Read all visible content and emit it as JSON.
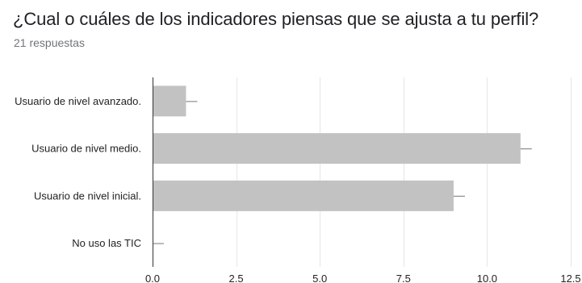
{
  "header": {
    "title": "¿Cual o cuáles de los indicadores piensas que se ajusta a tu perfil?",
    "responses": "21 respuestas"
  },
  "chart_data": {
    "type": "bar",
    "orientation": "horizontal",
    "title": "¿Cual o cuáles de los indicadores piensas que se ajusta a tu perfil?",
    "categories": [
      "Usuario de nivel avanzado.",
      "Usuario de nivel medio.",
      "Usuario de nivel inicial.",
      "No uso las TIC"
    ],
    "values": [
      1,
      11,
      9,
      0
    ],
    "xlim": [
      0,
      12.5
    ],
    "xticks": [
      0,
      2.5,
      5,
      7.5,
      10,
      12.5
    ],
    "xtick_labels": [
      "0.0",
      "2.5",
      "5.0",
      "7.5",
      "10.0",
      "12.5"
    ],
    "grid": true,
    "error_bars": true,
    "colors": {
      "bar": "#c2c2c2",
      "grid": "#e6e6e6",
      "axis": "#333333",
      "error_bar": "#8c8c8c"
    }
  }
}
